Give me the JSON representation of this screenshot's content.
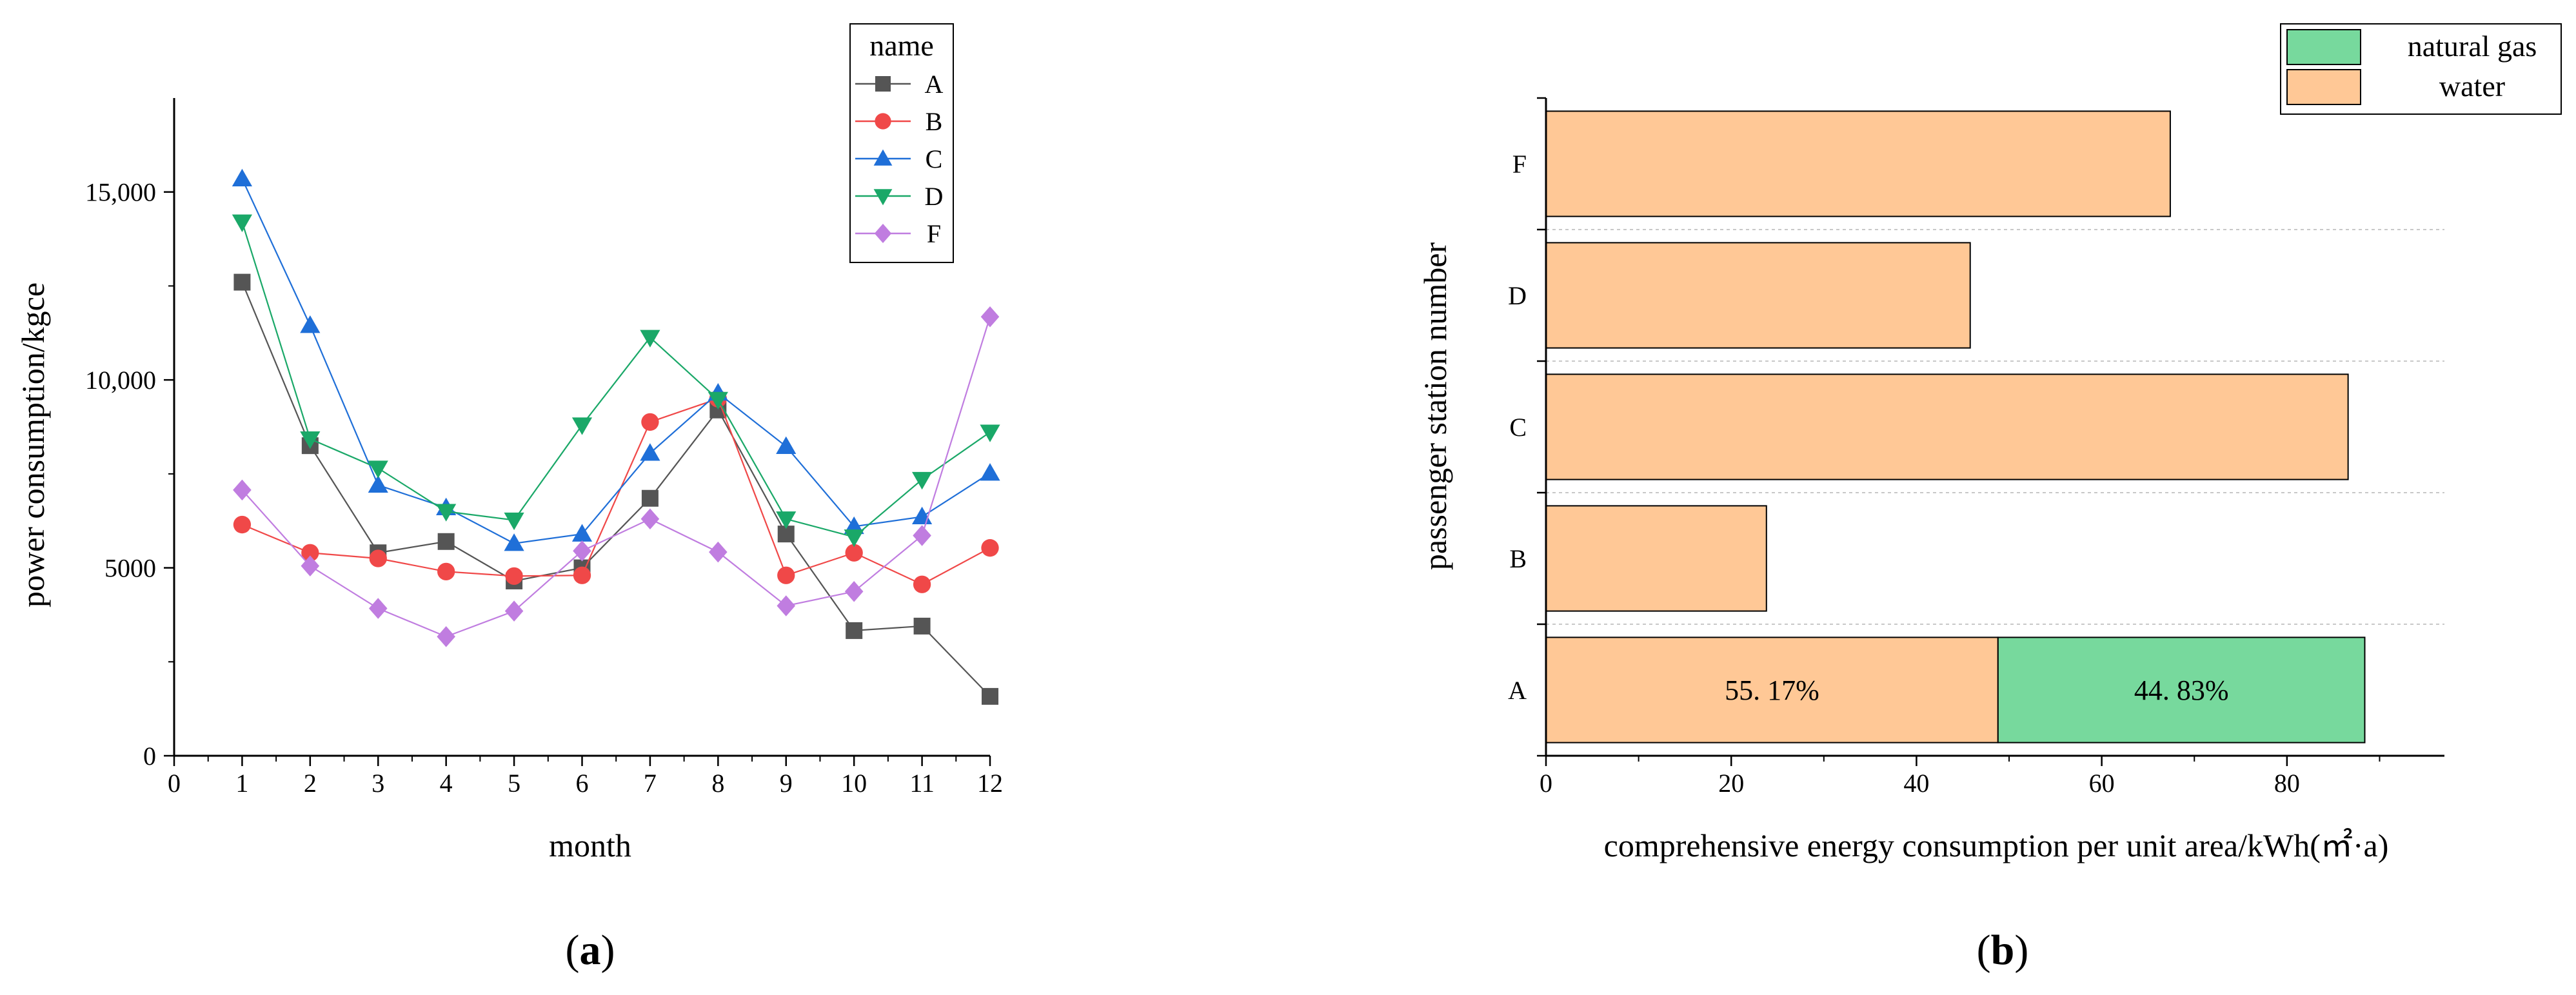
{
  "panels": [
    {
      "label_open": "(",
      "label_letter": "a",
      "label_close": ")"
    },
    {
      "label_open": "(",
      "label_letter": "b",
      "label_close": ")"
    }
  ],
  "chart_data": [
    {
      "type": "line",
      "title": "",
      "xlabel": "month",
      "ylabel": "power consumption/kgce",
      "xlim": [
        0,
        12
      ],
      "ylim": [
        0,
        17500
      ],
      "x_ticks": [
        0,
        1,
        2,
        3,
        4,
        5,
        6,
        7,
        8,
        9,
        10,
        11,
        12
      ],
      "y_ticks": [
        0,
        5000,
        10000,
        15000
      ],
      "y_tick_labels": [
        "0",
        "5000",
        "10,000",
        "15,000"
      ],
      "legend": {
        "title": "name",
        "position": "top-right"
      },
      "x": [
        1,
        2,
        3,
        4,
        5,
        6,
        7,
        8,
        9,
        10,
        11,
        12
      ],
      "series": [
        {
          "name": "A",
          "color": "#555555",
          "marker": "square",
          "values": [
            12600,
            8250,
            5400,
            5700,
            4650,
            5000,
            6850,
            9200,
            5900,
            3330,
            3450,
            1580
          ]
        },
        {
          "name": "B",
          "color": "#f04848",
          "marker": "circle",
          "values": [
            6150,
            5400,
            5250,
            4900,
            4780,
            4800,
            8880,
            9500,
            4800,
            5400,
            4560,
            5530
          ]
        },
        {
          "name": "C",
          "color": "#1f6fd8",
          "marker": "triangle-up",
          "values": [
            15350,
            11450,
            7200,
            6600,
            5650,
            5900,
            8050,
            9650,
            8230,
            6100,
            6360,
            7520
          ]
        },
        {
          "name": "D",
          "color": "#1aa868",
          "marker": "triangle-down",
          "values": [
            14200,
            8430,
            7650,
            6500,
            6270,
            8800,
            11130,
            9480,
            6300,
            5820,
            7350,
            8610
          ]
        },
        {
          "name": "F",
          "color": "#c07de0",
          "marker": "diamond",
          "values": [
            7070,
            5050,
            3920,
            3170,
            3850,
            5450,
            6300,
            5420,
            3990,
            4370,
            5860,
            11680
          ]
        }
      ]
    },
    {
      "type": "bar",
      "orientation": "horizontal",
      "stacked": true,
      "title": "",
      "xlabel": "comprehensive energy consumption per unit area/kWh(㎡·a)",
      "ylabel": "passenger station number",
      "xlim": [
        0,
        97
      ],
      "x_ticks": [
        0,
        20,
        40,
        60,
        80
      ],
      "categories": [
        "A",
        "B",
        "C",
        "D",
        "F"
      ],
      "legend": {
        "position": "top-right"
      },
      "series": [
        {
          "name": "water",
          "color": "#ffc896",
          "values": [
            48.8,
            23.8,
            86.6,
            45.8,
            67.4
          ]
        },
        {
          "name": "natural gas",
          "color": "#77d99d",
          "values": [
            39.6,
            0,
            0,
            0,
            0
          ]
        }
      ],
      "annotations": [
        {
          "category": "A",
          "series": "water",
          "text": "55. 17%"
        },
        {
          "category": "A",
          "series": "natural gas",
          "text": "44. 83%"
        }
      ]
    }
  ]
}
